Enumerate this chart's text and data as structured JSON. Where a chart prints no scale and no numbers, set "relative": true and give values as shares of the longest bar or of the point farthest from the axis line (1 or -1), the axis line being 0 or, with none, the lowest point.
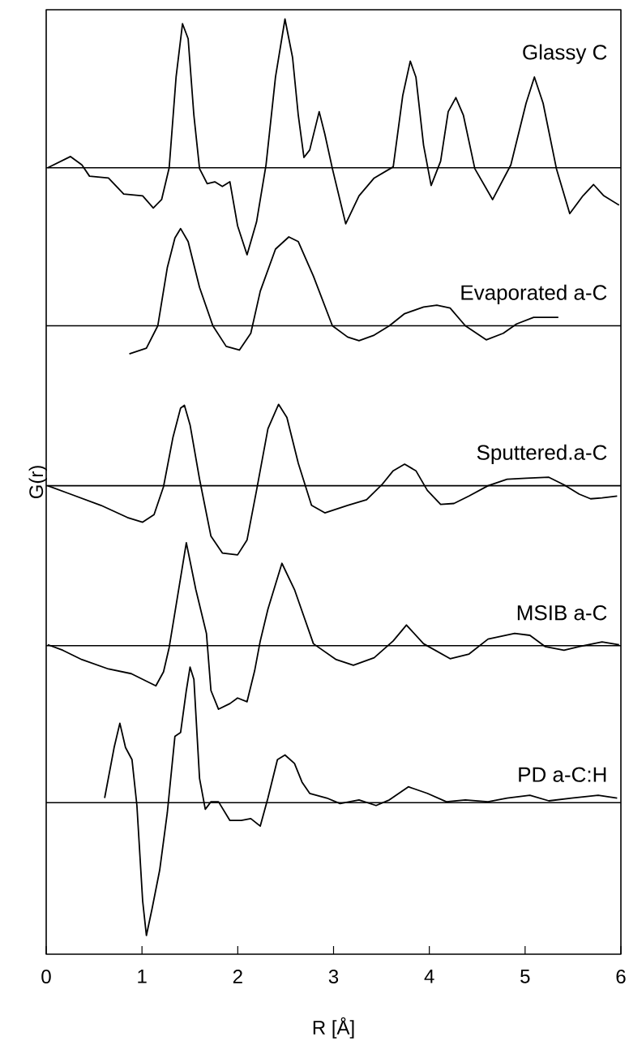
{
  "chart_data": {
    "type": "line",
    "relative": true,
    "xlabel": "R [Å]",
    "ylabel": "G(r)",
    "xlim": [
      0,
      6
    ],
    "xticks": [
      0,
      1,
      2,
      3,
      4,
      5,
      6
    ],
    "tick_labels": "x",
    "marker": "none",
    "series": [
      {
        "name": "Glassy C",
        "color": "#000000",
        "x": [
          0.016,
          0.254,
          0.373,
          0.452,
          0.65,
          0.809,
          1.007,
          1.118,
          1.205,
          1.284,
          1.356,
          1.423,
          1.482,
          1.542,
          1.601,
          1.681,
          1.76,
          1.839,
          1.918,
          1.998,
          2.097,
          2.196,
          2.295,
          2.394,
          2.493,
          2.572,
          2.632,
          2.691,
          2.751,
          2.85,
          2.909,
          2.988,
          3.127,
          3.266,
          3.424,
          3.623,
          3.722,
          3.801,
          3.86,
          3.94,
          4.019,
          4.118,
          4.197,
          4.277,
          4.356,
          4.475,
          4.661,
          4.851,
          5.01,
          5.097,
          5.188,
          5.327,
          5.466,
          5.604,
          5.715,
          5.822,
          5.981
        ],
        "values": [
          0.841,
          0.853,
          0.844,
          0.832,
          0.83,
          0.813,
          0.811,
          0.798,
          0.807,
          0.841,
          0.938,
          0.995,
          0.979,
          0.897,
          0.84,
          0.824,
          0.826,
          0.821,
          0.826,
          0.779,
          0.748,
          0.783,
          0.844,
          0.938,
          1.0,
          0.959,
          0.897,
          0.852,
          0.86,
          0.901,
          0.877,
          0.84,
          0.781,
          0.811,
          0.83,
          0.842,
          0.918,
          0.955,
          0.938,
          0.865,
          0.822,
          0.848,
          0.901,
          0.916,
          0.897,
          0.84,
          0.807,
          0.844,
          0.91,
          0.938,
          0.91,
          0.84,
          0.792,
          0.811,
          0.823,
          0.811,
          0.801
        ]
      },
      {
        "name": "Evaporated a-C",
        "color": "#000000",
        "x": [
          0.868,
          1.046,
          1.165,
          1.264,
          1.344,
          1.403,
          1.482,
          1.601,
          1.74,
          1.879,
          2.017,
          2.136,
          2.235,
          2.394,
          2.533,
          2.632,
          2.79,
          2.988,
          3.147,
          3.266,
          3.424,
          3.583,
          3.742,
          3.94,
          4.078,
          4.217,
          4.376,
          4.594,
          4.772,
          4.911,
          5.089,
          5.347
        ],
        "values": [
          0.642,
          0.648,
          0.672,
          0.734,
          0.766,
          0.776,
          0.762,
          0.713,
          0.672,
          0.65,
          0.646,
          0.664,
          0.709,
          0.754,
          0.767,
          0.762,
          0.725,
          0.672,
          0.66,
          0.656,
          0.662,
          0.672,
          0.685,
          0.692,
          0.694,
          0.691,
          0.672,
          0.657,
          0.664,
          0.674,
          0.681,
          0.681
        ]
      },
      {
        "name": "Sputtered.a-C",
        "color": "#000000",
        "x": [
          0.016,
          0.254,
          0.571,
          0.848,
          1.007,
          1.126,
          1.225,
          1.324,
          1.403,
          1.443,
          1.502,
          1.601,
          1.72,
          1.839,
          1.998,
          2.097,
          2.196,
          2.315,
          2.426,
          2.513,
          2.632,
          2.77,
          2.909,
          3.147,
          3.345,
          3.504,
          3.623,
          3.742,
          3.86,
          3.979,
          4.118,
          4.257,
          4.415,
          4.613,
          4.812,
          5.01,
          5.248,
          5.406,
          5.565,
          5.684,
          5.803,
          5.961
        ],
        "values": [
          0.501,
          0.492,
          0.48,
          0.467,
          0.462,
          0.47,
          0.5,
          0.553,
          0.584,
          0.587,
          0.566,
          0.508,
          0.447,
          0.429,
          0.427,
          0.443,
          0.496,
          0.562,
          0.588,
          0.574,
          0.525,
          0.48,
          0.472,
          0.48,
          0.486,
          0.502,
          0.517,
          0.524,
          0.517,
          0.496,
          0.481,
          0.482,
          0.49,
          0.501,
          0.508,
          0.509,
          0.51,
          0.502,
          0.492,
          0.487,
          0.488,
          0.49
        ]
      },
      {
        "name": "MSIB a-C",
        "color": "#000000",
        "x": [
          0.016,
          0.174,
          0.373,
          0.65,
          0.888,
          1.046,
          1.145,
          1.225,
          1.284,
          1.463,
          1.562,
          1.673,
          1.72,
          1.799,
          1.918,
          1.998,
          2.097,
          2.176,
          2.235,
          2.315,
          2.461,
          2.592,
          2.79,
          3.028,
          3.207,
          3.424,
          3.623,
          3.761,
          3.94,
          4.217,
          4.415,
          4.613,
          4.891,
          5.05,
          5.208,
          5.406,
          5.565,
          5.803,
          5.981
        ],
        "values": [
          0.331,
          0.325,
          0.315,
          0.305,
          0.3,
          0.292,
          0.287,
          0.302,
          0.328,
          0.44,
          0.39,
          0.343,
          0.282,
          0.262,
          0.268,
          0.274,
          0.27,
          0.303,
          0.335,
          0.369,
          0.418,
          0.39,
          0.332,
          0.315,
          0.309,
          0.317,
          0.335,
          0.352,
          0.332,
          0.316,
          0.321,
          0.337,
          0.343,
          0.341,
          0.329,
          0.325,
          0.329,
          0.334,
          0.331
        ]
      },
      {
        "name": "PD a-C:H",
        "color": "#000000",
        "x": [
          0.61,
          0.709,
          0.769,
          0.828,
          0.896,
          0.947,
          1.007,
          1.046,
          1.106,
          1.185,
          1.264,
          1.344,
          1.403,
          1.463,
          1.502,
          1.542,
          1.601,
          1.661,
          1.72,
          1.799,
          1.918,
          2.037,
          2.136,
          2.235,
          2.315,
          2.414,
          2.493,
          2.592,
          2.671,
          2.751,
          2.929,
          3.068,
          3.266,
          3.444,
          3.583,
          3.781,
          3.979,
          4.178,
          4.376,
          4.613,
          4.812,
          5.05,
          5.248,
          5.485,
          5.763,
          5.961
        ],
        "values": [
          0.167,
          0.221,
          0.247,
          0.221,
          0.208,
          0.159,
          0.057,
          0.02,
          0.049,
          0.09,
          0.151,
          0.233,
          0.237,
          0.282,
          0.307,
          0.294,
          0.188,
          0.155,
          0.163,
          0.163,
          0.143,
          0.143,
          0.145,
          0.137,
          0.167,
          0.208,
          0.213,
          0.204,
          0.184,
          0.172,
          0.167,
          0.161,
          0.165,
          0.159,
          0.165,
          0.179,
          0.172,
          0.163,
          0.165,
          0.163,
          0.167,
          0.17,
          0.164,
          0.167,
          0.17,
          0.167
        ]
      }
    ],
    "ref_lines": [
      {
        "axis": "y",
        "value": 0.841,
        "color": "#000000"
      },
      {
        "axis": "y",
        "value": 0.672,
        "color": "#000000"
      },
      {
        "axis": "y",
        "value": 0.501,
        "color": "#000000"
      },
      {
        "axis": "y",
        "value": 0.33,
        "color": "#000000"
      },
      {
        "axis": "y",
        "value": 0.162,
        "color": "#000000"
      }
    ]
  }
}
